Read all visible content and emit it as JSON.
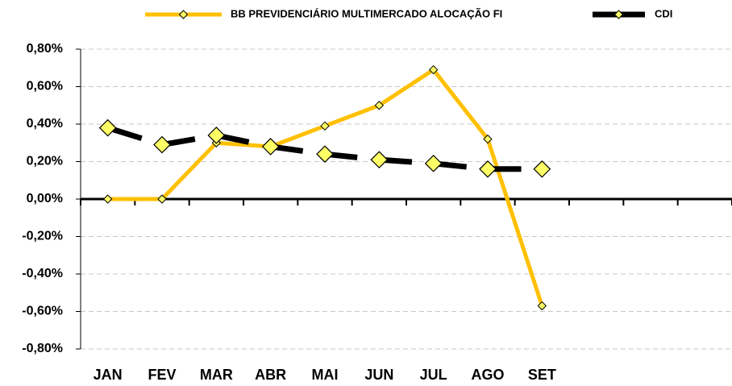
{
  "chart_data": {
    "type": "line",
    "categories": [
      "JAN",
      "FEV",
      "MAR",
      "ABR",
      "MAI",
      "JUN",
      "JUL",
      "AGO",
      "SET",
      null,
      null,
      null
    ],
    "series": [
      {
        "name": "BB PREVIDENCIÁRIO MULTIMERCADO ALOCAÇÃO FI",
        "color": "#FFC000",
        "values": [
          0,
          0,
          0.3,
          0.28,
          0.39,
          0.5,
          0.69,
          0.32,
          -0.57,
          null,
          null,
          null
        ]
      },
      {
        "name": "CDI",
        "color": "#000000",
        "values": [
          0.38,
          0.29,
          0.34,
          0.28,
          0.24,
          0.21,
          0.19,
          0.16,
          0.16,
          null,
          null,
          null
        ]
      }
    ],
    "ylim": [
      -0.8,
      0.8
    ],
    "yticks": [
      {
        "value": -0.8,
        "label": "-0,80%"
      },
      {
        "value": -0.6,
        "label": "-0,60%"
      },
      {
        "value": -0.4,
        "label": "-0,40%"
      },
      {
        "value": -0.2,
        "label": "-0,20%"
      },
      {
        "value": 0,
        "label": "0,00%"
      },
      {
        "value": 0.2,
        "label": "0,20%"
      },
      {
        "value": 0.4,
        "label": "0,40%"
      },
      {
        "value": 0.6,
        "label": "0,60%"
      },
      {
        "value": 0.8,
        "label": "0,80%"
      }
    ],
    "grid": true
  }
}
